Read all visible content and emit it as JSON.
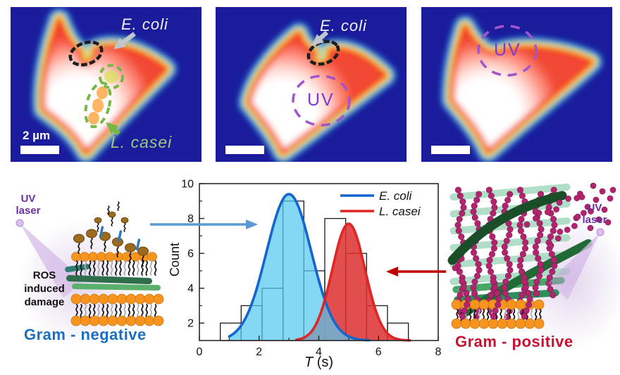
{
  "top_row": {
    "panel1": {
      "ecoli_label": "E. coli",
      "lcasei_label": "L. casei",
      "scalebar_label": "2 µm"
    },
    "panel2": {
      "ecoli_label": "E. coli",
      "uv_label": "UV"
    },
    "panel3": {
      "uv_label": "UV"
    }
  },
  "left_diagram": {
    "laser_word1": "UV",
    "laser_word2": "laser",
    "ros_line1": "ROS",
    "ros_line2": "induced",
    "ros_line3": "damage",
    "caption": "Gram - negative",
    "caption_color": "#1b6fc0"
  },
  "right_diagram": {
    "laser_word1": "UV",
    "laser_word2": "laser",
    "caption": "Gram - positive",
    "caption_color": "#c41230"
  },
  "annotations": {
    "blue_arrow_color": "#5b9bd5",
    "red_arrow_color": "#c00000"
  },
  "chart_data": {
    "type": "bar",
    "subtype": "histogram-with-gaussian-fits",
    "title": "",
    "xlabel": "T (s)",
    "xlabel_italic_part": "T",
    "xlabel_plain_part": " (s)",
    "ylabel": "Count",
    "xlim": [
      0,
      8
    ],
    "ylim": [
      1,
      10
    ],
    "xticks": [
      0,
      2,
      4,
      6,
      8
    ],
    "yticks": [
      2,
      4,
      6,
      8,
      10
    ],
    "x_minor_ticks": [
      1,
      3,
      5,
      7
    ],
    "y_minor_ticks": [
      3,
      5,
      7,
      9
    ],
    "grid": false,
    "legend_position": "top-right",
    "bins": {
      "edges": [
        0.7,
        1.4,
        2.1,
        2.8,
        3.5,
        4.2,
        4.9,
        5.6,
        6.3,
        7.0
      ],
      "counts": [
        2,
        3,
        4,
        9,
        5,
        8,
        6,
        3,
        2
      ]
    },
    "series": [
      {
        "name": "E. coli",
        "model": "gaussian",
        "mean": 3.0,
        "sigma": 0.75,
        "peak": 9.4,
        "baseline": 1.0,
        "range": [
          1.0,
          5.7
        ],
        "stroke": "#1565d0",
        "fill": "#55c9f0",
        "fill_opacity": 0.72
      },
      {
        "name": "L. casei",
        "model": "gaussian",
        "mean": 5.0,
        "sigma": 0.55,
        "peak": 7.7,
        "baseline": 1.0,
        "range": [
          3.25,
          7.05
        ],
        "stroke": "#e02525",
        "fill": "#dd2f2f",
        "fill_opacity": 0.85
      }
    ],
    "legend": [
      {
        "label": "E. coli",
        "color": "#1565d0"
      },
      {
        "label": "L. casei",
        "color": "#e02525"
      }
    ]
  }
}
